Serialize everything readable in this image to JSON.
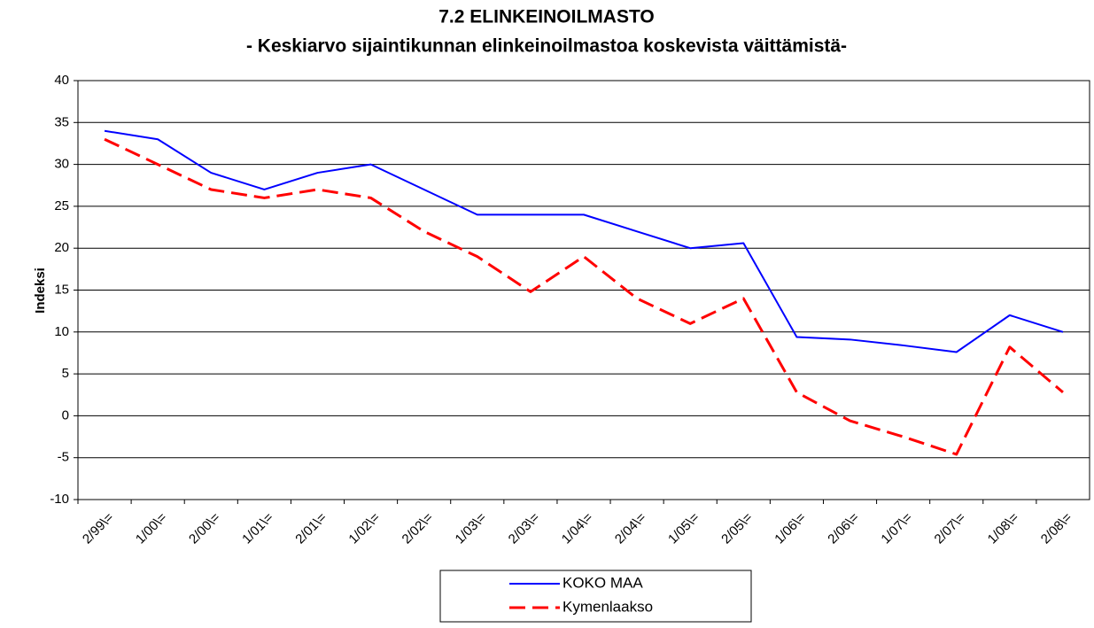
{
  "chart_data": {
    "type": "line",
    "title": "7.2 ELINKEINOILMASTO",
    "subtitle": "- Keskiarvo sijaintikunnan elinkeinoilmastoa koskevista väittämistä-",
    "y_label": "Indeksi",
    "categories": [
      "2/99\\=",
      "1/00\\=",
      "2/00\\=",
      "1/01\\=",
      "2/01\\=",
      "1/02\\=",
      "2/02\\=",
      "1/03\\=",
      "2/03\\=",
      "1/04\\=",
      "2/04\\=",
      "1/05\\=",
      "2/05\\=",
      "1/06\\=",
      "2/06\\=",
      "1/07\\=",
      "2/07\\=",
      "1/08\\=",
      "2/08\\="
    ],
    "series": [
      {
        "name": "KOKO MAA",
        "color": "#0000ff",
        "dash": false,
        "values": [
          34,
          33,
          29,
          27,
          29,
          30,
          27,
          24,
          24,
          24,
          22,
          20,
          20.6,
          9.4,
          9.1,
          8.4,
          7.6,
          12,
          10
        ]
      },
      {
        "name": "Kymenlaakso",
        "color": "#ff0000",
        "dash": true,
        "values": [
          33,
          30,
          27,
          26,
          27,
          26,
          22,
          19,
          14.8,
          19,
          14,
          11,
          14,
          2.8,
          -0.6,
          -2.5,
          -4.6,
          8.2,
          2.8
        ]
      }
    ],
    "ylim": [
      -10,
      40
    ],
    "yticks": [
      -10,
      -5,
      0,
      5,
      10,
      15,
      20,
      25,
      30,
      35,
      40
    ],
    "grid": true,
    "legend": "bottom"
  }
}
